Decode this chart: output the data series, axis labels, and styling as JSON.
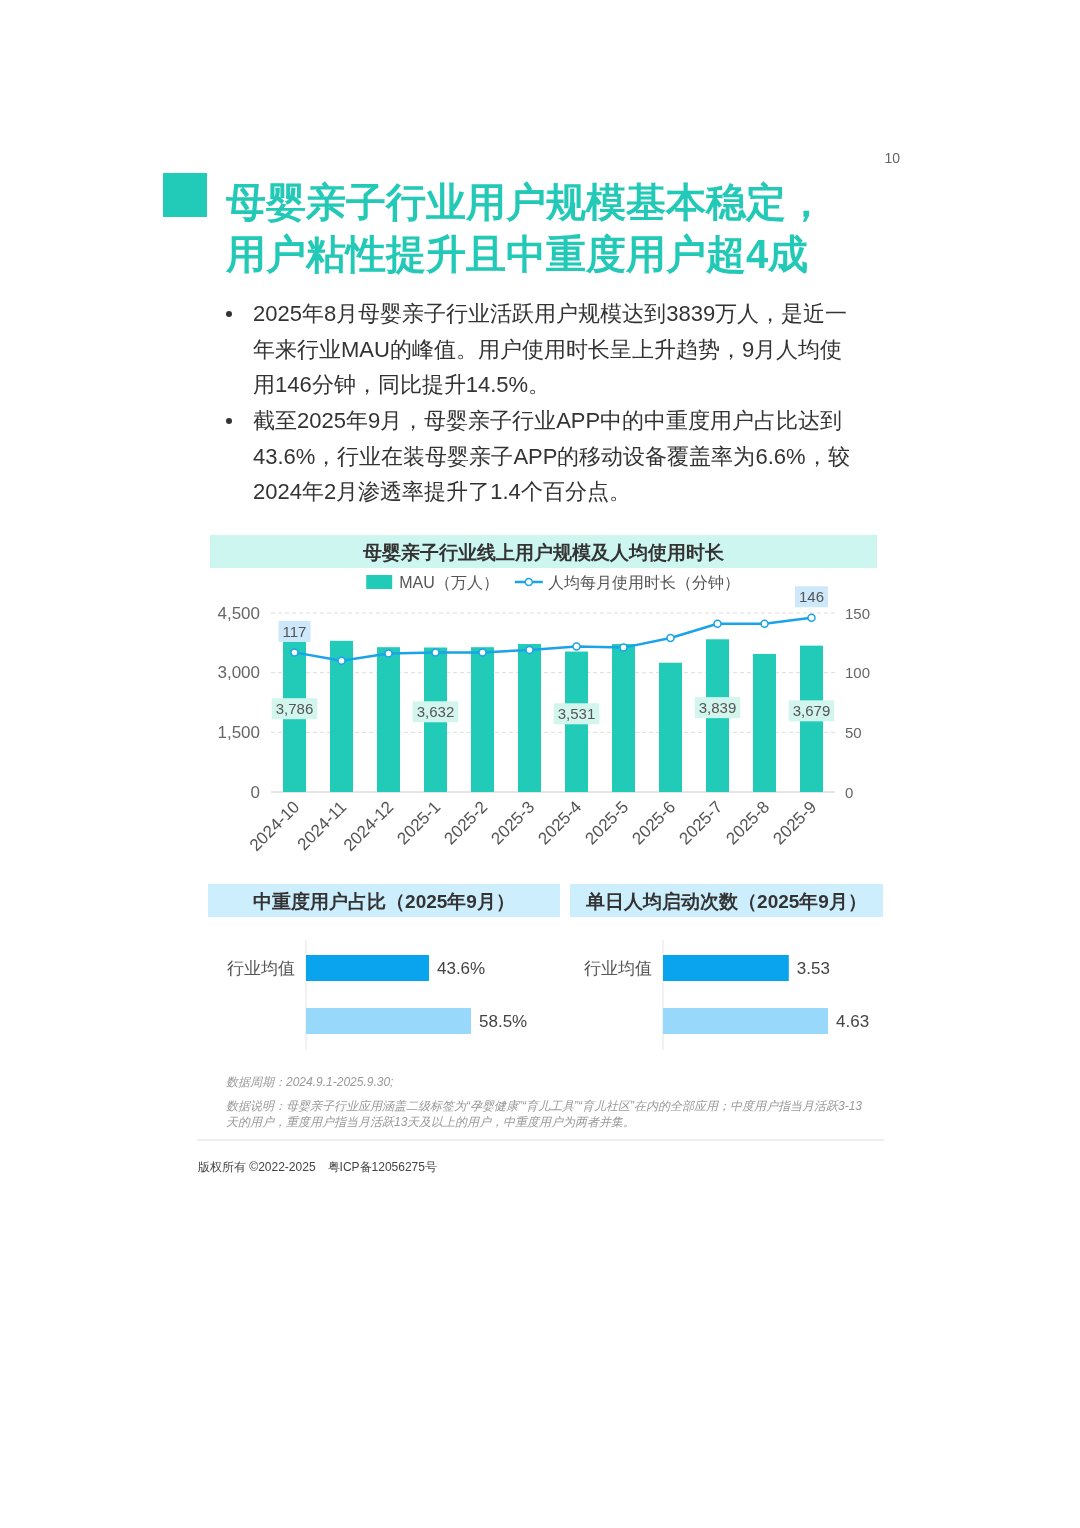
{
  "chart_data": [
    {
      "type": "other",
      "title": "母婴亲子行业用户规模基本稳定，用户粘性提升且中重度用户超4成",
      "annotations": [
        "10",
        "2025年8月母婴亲子行业活跃用户规模达到3839万人，是近一年来行业MAU的峰值。用户使用时长呈上升趋势，9月人均使用146分钟，同比提升14.5%。",
        "截至2025年9月，母婴亲子行业APP中的中重度用户占比达到43.6%，行业在装母婴亲子APP的移动设备覆盖率为6.6%，较2024年2月渗透率提升了1.4个百分点。"
      ]
    },
    {
      "type": "bar",
      "title": "母婴亲子行业线上用户规模及人均使用时长",
      "categories": [
        "2024-10",
        "2024-11",
        "2024-12",
        "2025-1",
        "2025-2",
        "2025-3",
        "2025-4",
        "2025-5",
        "2025-6",
        "2025-7",
        "2025-8",
        "2025-9"
      ],
      "series": [
        {
          "name": "MAU（万人）",
          "type": "bar",
          "color": "#22cbb8",
          "values": [
            3786,
            3800,
            3640,
            3632,
            3640,
            3720,
            3531,
            3720,
            3250,
            3839,
            3470,
            3679
          ],
          "value_labels": [
            "3,786",
            null,
            null,
            "3,632",
            null,
            null,
            "3,531",
            null,
            null,
            "3,839",
            null,
            "3,679"
          ]
        },
        {
          "name": "人均每月使用时长（分钟）",
          "type": "line",
          "axis": "y2",
          "color": "#1aa3e8",
          "values": [
            117,
            110,
            116,
            117,
            117,
            119,
            122,
            121,
            129,
            141,
            141,
            146
          ],
          "value_labels": [
            "117",
            null,
            null,
            null,
            null,
            null,
            null,
            null,
            null,
            null,
            null,
            "146"
          ]
        }
      ],
      "ylim": [
        0,
        4500
      ],
      "yticks": [
        0,
        {
          "value": 1500,
          "label": "1,500"
        },
        {
          "value": 3000,
          "label": "3,000"
        },
        {
          "value": 4500,
          "label": "4,500"
        }
      ],
      "y2lim": [
        0,
        150
      ],
      "y2ticks": [
        0,
        50,
        100,
        150
      ],
      "grid": "y",
      "legend": "top",
      "marker": "circle"
    },
    {
      "type": "bar",
      "orientation": "horizontal",
      "title": "中重度用户占比（2025年9月）",
      "categories": [
        "行业均值",
        null
      ],
      "values": [
        43.6,
        58.5
      ],
      "colors": [
        "#0aa3ee",
        "#98d8fb"
      ],
      "value_labels": [
        "43.6%",
        "58.5%"
      ]
    },
    {
      "type": "bar",
      "orientation": "horizontal",
      "title": "单日人均启动次数（2025年9月）",
      "categories": [
        "行业均值",
        null
      ],
      "values": [
        3.53,
        4.63
      ],
      "colors": [
        "#0aa3ee",
        "#98d8fb"
      ],
      "data_labels": true
    },
    {
      "type": "other",
      "annotations": [
        "数据周期：2024.9.1-2025.9.30;",
        "数据说明：母婴亲子行业应用涵盖二级标签为“孕婴健康”“育儿工具”“育儿社区”在内的全部应用；中度用户指当月活跃3-13天的用户，重度用户指当月活跃13天及以上的用户，中重度用户为两者并集。",
        "版权所有 ©2022-2025　粤ICP备12056275号"
      ]
    }
  ]
}
